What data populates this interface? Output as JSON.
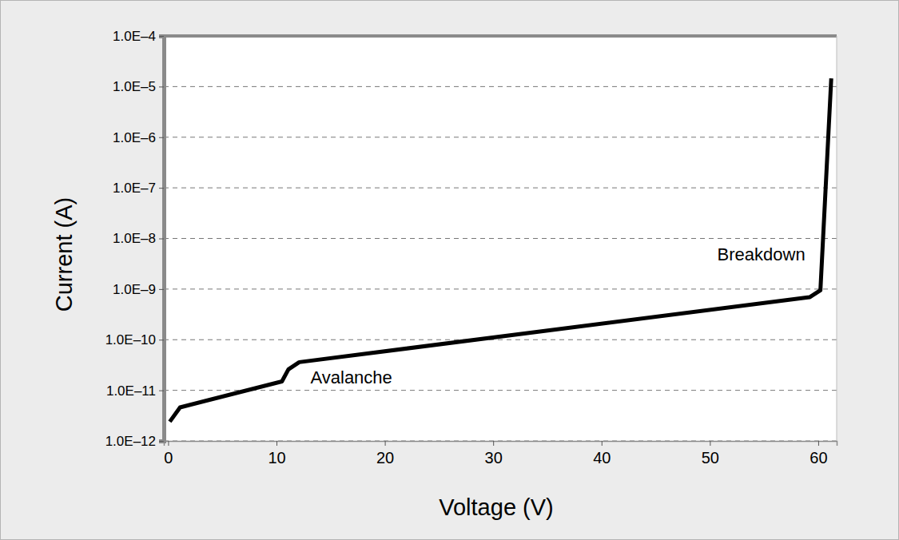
{
  "chart_data": {
    "type": "line",
    "x_label": "Voltage (V)",
    "y_label": "Current (A)",
    "x": [
      0.15,
      1.1,
      10.5,
      11.1,
      12.1,
      59.2,
      60.2,
      61.2
    ],
    "values": [
      2.4e-12,
      4.6e-12,
      1.5e-11,
      2.6e-11,
      3.6e-11,
      6.9e-10,
      9.5e-10,
      1.45e-05
    ],
    "color": "#000000",
    "log": "y",
    "grid": true,
    "xlim": [
      -0.4,
      61.7
    ],
    "xticks": [
      0,
      10,
      20,
      30,
      40,
      50,
      60
    ],
    "ylim": [
      1e-12,
      0.0001
    ],
    "yticks": [
      {
        "value": 1e-12,
        "label": "1.0E–12"
      },
      {
        "value": 1e-11,
        "label": "1.0E–11"
      },
      {
        "value": 1e-10,
        "label": "1.0E–10"
      },
      {
        "value": 1e-09,
        "label": "1.0E–9"
      },
      {
        "value": 1e-08,
        "label": "1.0E–8"
      },
      {
        "value": 1e-07,
        "label": "1.0E–7"
      },
      {
        "value": 1e-06,
        "label": "1.0E–6"
      },
      {
        "value": 1e-05,
        "label": "1.0E–5"
      },
      {
        "value": 0.0001,
        "label": "1.0E–4"
      }
    ],
    "annotations": [
      "Avalanche",
      "Breakdown"
    ]
  }
}
